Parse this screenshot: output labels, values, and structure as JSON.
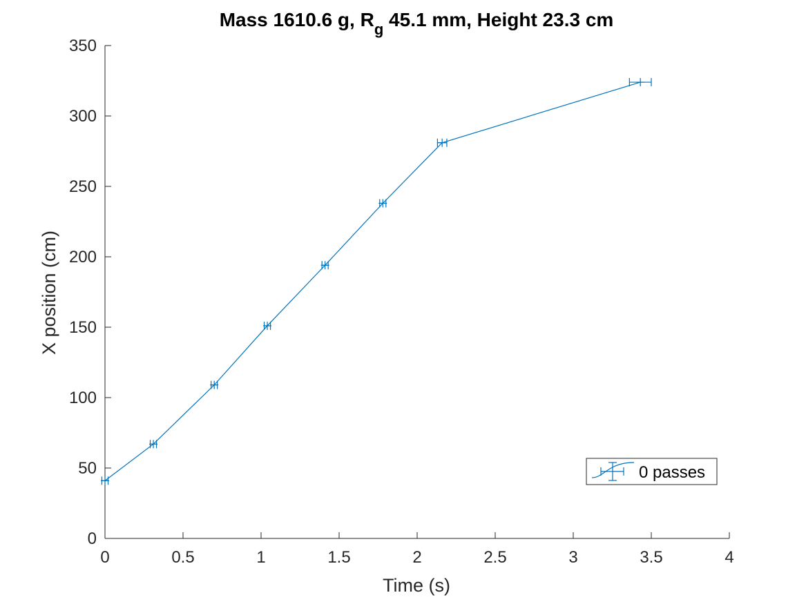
{
  "chart_data": {
    "type": "line",
    "title": {
      "prefix": "Mass 1610.6 g, R",
      "subscript": "g",
      "suffix": " 45.1 mm,  Height 23.3 cm"
    },
    "xlabel": "Time (s)",
    "ylabel": "X position (cm)",
    "xlim": [
      0,
      4
    ],
    "ylim": [
      0,
      350
    ],
    "xticks": [
      0,
      0.5,
      1,
      1.5,
      2,
      2.5,
      3,
      3.5,
      4
    ],
    "xtick_labels": [
      "0",
      "0.5",
      "1",
      "1.5",
      "2",
      "2.5",
      "3",
      "3.5",
      "4"
    ],
    "yticks": [
      0,
      50,
      100,
      150,
      200,
      250,
      300,
      350
    ],
    "ytick_labels": [
      "0",
      "50",
      "100",
      "150",
      "200",
      "250",
      "300",
      "350"
    ],
    "grid": false,
    "legend": {
      "placement": "bottom-right",
      "entries": [
        "0 passes"
      ]
    },
    "series": [
      {
        "name": "0 passes",
        "color": "#0072BD",
        "x": [
          0.0,
          0.31,
          0.7,
          1.04,
          1.41,
          1.78,
          2.16,
          3.43
        ],
        "y": [
          41,
          67,
          109,
          151,
          194,
          238,
          281,
          324
        ],
        "xerr": [
          0.02,
          0.02,
          0.02,
          0.02,
          0.02,
          0.02,
          0.03,
          0.07
        ],
        "yerr": [
          0,
          0,
          0,
          0,
          0,
          0,
          0,
          0
        ]
      }
    ]
  }
}
